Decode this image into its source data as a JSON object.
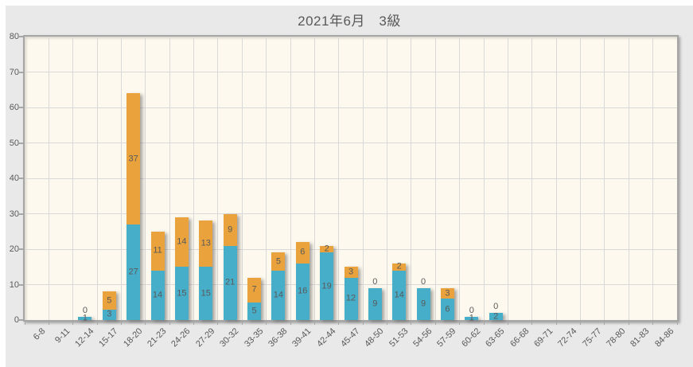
{
  "chart_data": {
    "type": "bar",
    "stacked": true,
    "title": "2021年6月　3級",
    "categories": [
      "6-8",
      "9-11",
      "12-14",
      "15-17",
      "18-20",
      "21-23",
      "24-26",
      "27-29",
      "30-32",
      "33-35",
      "36-38",
      "39-41",
      "42-44",
      "45-47",
      "48-50",
      "51-53",
      "54-56",
      "57-59",
      "60-62",
      "63-65",
      "66-68",
      "69-71",
      "72-74",
      "75-77",
      "78-80",
      "81-83",
      "84-86"
    ],
    "series": [
      {
        "name": "",
        "color": "#47AEC9",
        "values": [
          0,
          0,
          1,
          3,
          27,
          14,
          15,
          15,
          21,
          5,
          14,
          16,
          19,
          12,
          9,
          14,
          9,
          6,
          1,
          2,
          0,
          0,
          0,
          0,
          0,
          0,
          0
        ]
      },
      {
        "name": "",
        "color": "#E9A23C",
        "values": [
          0,
          0,
          0,
          5,
          37,
          11,
          14,
          13,
          9,
          7,
          5,
          6,
          2,
          3,
          0,
          2,
          0,
          3,
          0,
          0,
          0,
          0,
          0,
          0,
          0,
          0,
          0
        ]
      }
    ],
    "xlabel": "",
    "ylabel": "",
    "ylim": [
      0,
      80
    ],
    "ytick_interval": 10,
    "grid": true,
    "legend": "none",
    "data_labels": true
  },
  "style": {
    "page_bg": "#FFFFFF",
    "chart_bg": "#E9E9E9",
    "plot_bg": "#FDF9EF",
    "border_color": "#A6A6A6",
    "gridline_color": "#D9D9D9",
    "text_color": "#595959"
  }
}
